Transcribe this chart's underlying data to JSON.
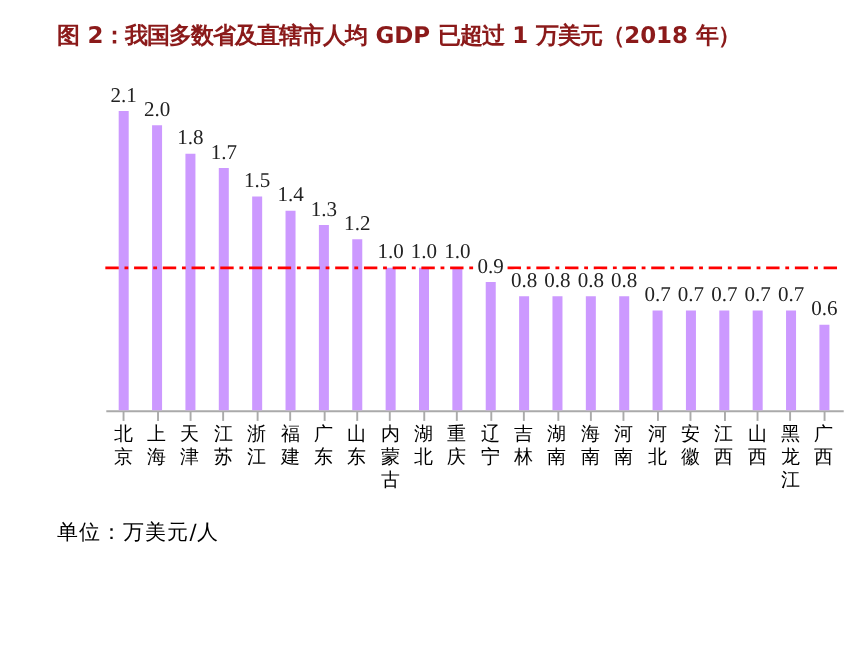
{
  "chart_data": {
    "type": "bar",
    "title": "图 2：我国多数省及直辖市人均 GDP 已超过 1 万美元（2018 年）",
    "categories": [
      "北京",
      "上海",
      "天津",
      "江苏",
      "浙江",
      "福建",
      "广东",
      "山东",
      "内蒙古",
      "湖北",
      "重庆",
      "辽宁",
      "吉林",
      "湖南",
      "海南",
      "河南",
      "河北",
      "安徽",
      "江西",
      "山西",
      "黑龙江",
      "广西"
    ],
    "values": [
      2.1,
      2.0,
      1.8,
      1.7,
      1.5,
      1.4,
      1.3,
      1.2,
      1.0,
      1.0,
      1.0,
      0.9,
      0.8,
      0.8,
      0.8,
      0.8,
      0.7,
      0.7,
      0.7,
      0.7,
      0.7,
      0.6
    ],
    "color": "#cc99ff",
    "value_labels": [
      "2.1",
      "2.0",
      "1.8",
      "1.7",
      "1.5",
      "1.4",
      "1.3",
      "1.2",
      "1.0",
      "1.0",
      "1.0",
      "0.9",
      "0.8",
      "0.8",
      "0.8",
      "0.8",
      "0.7",
      "0.7",
      "0.7",
      "0.7",
      "0.7",
      "0.6"
    ],
    "ref_lines": [
      {
        "axis": "y",
        "value": 1.0,
        "color": "#ff0000",
        "line_style": "dashdot"
      }
    ],
    "annotations": [
      "单位：万美元/人"
    ]
  }
}
